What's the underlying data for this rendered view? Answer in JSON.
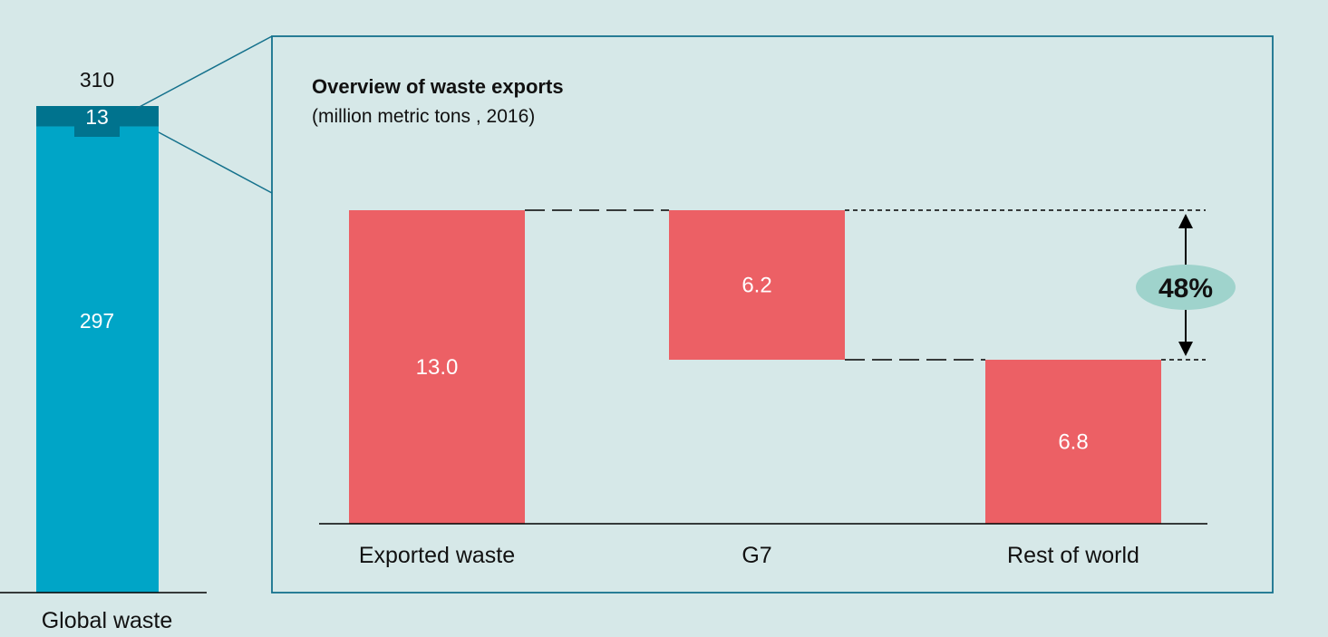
{
  "colors": {
    "background": "#d6e8e8",
    "global_bar": "#00a5c7",
    "exports_band": "#00738e",
    "frame": "#14718c",
    "waterfall_bar": "#ec6065",
    "pill": "#9fd3cc"
  },
  "chart_data": [
    {
      "type": "bar",
      "categories": [
        "Global waste"
      ],
      "series": [
        {
          "values": [
            297
          ]
        },
        {
          "values": [
            13
          ]
        }
      ],
      "total_label": "310",
      "segment_labels": [
        "297",
        "13"
      ]
    },
    {
      "type": "bar",
      "subtype": "waterfall",
      "title": "Overview of waste exports",
      "subtitle": "(million metric tons , 2016)",
      "categories": [
        "Exported waste",
        "G7",
        "Rest of world"
      ],
      "values": [
        13.0,
        6.2,
        6.8
      ],
      "value_labels": [
        "13.0",
        "6.2",
        "6.8"
      ],
      "ylim": [
        0,
        13.0
      ],
      "annotation": {
        "label": "48%",
        "icon": "double-arrow-icon"
      }
    }
  ]
}
